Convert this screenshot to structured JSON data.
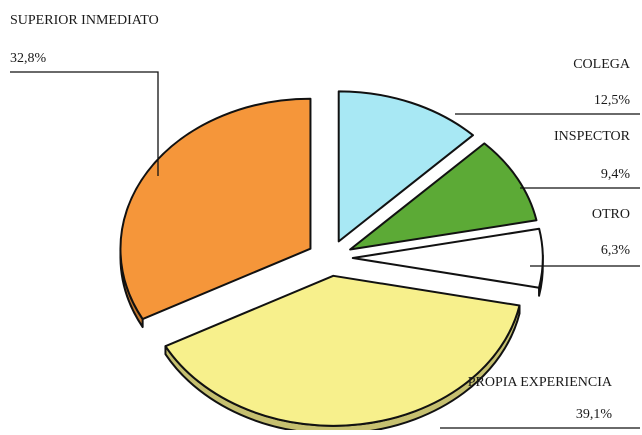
{
  "chart_data": {
    "type": "pie",
    "title": "",
    "exploded": true,
    "three_d_edge": true,
    "slices": [
      {
        "label": "COLEGA",
        "value": 12.5,
        "value_label": "12,5%",
        "color": "#a8e8f4"
      },
      {
        "label": "INSPECTOR",
        "value": 9.4,
        "value_label": "9,4%",
        "color": "#5caa36"
      },
      {
        "label": "OTRO",
        "value": 6.3,
        "value_label": "6,3%",
        "color": "#ffffff"
      },
      {
        "label": "PROPIA EXPERIENCIA",
        "value": 39.1,
        "value_label": "39,1%",
        "color": "#f7f08c"
      },
      {
        "label": "SUPERIOR INMEDIATO",
        "value": 32.8,
        "value_label": "32,8%",
        "color": "#f5963a"
      }
    ]
  }
}
